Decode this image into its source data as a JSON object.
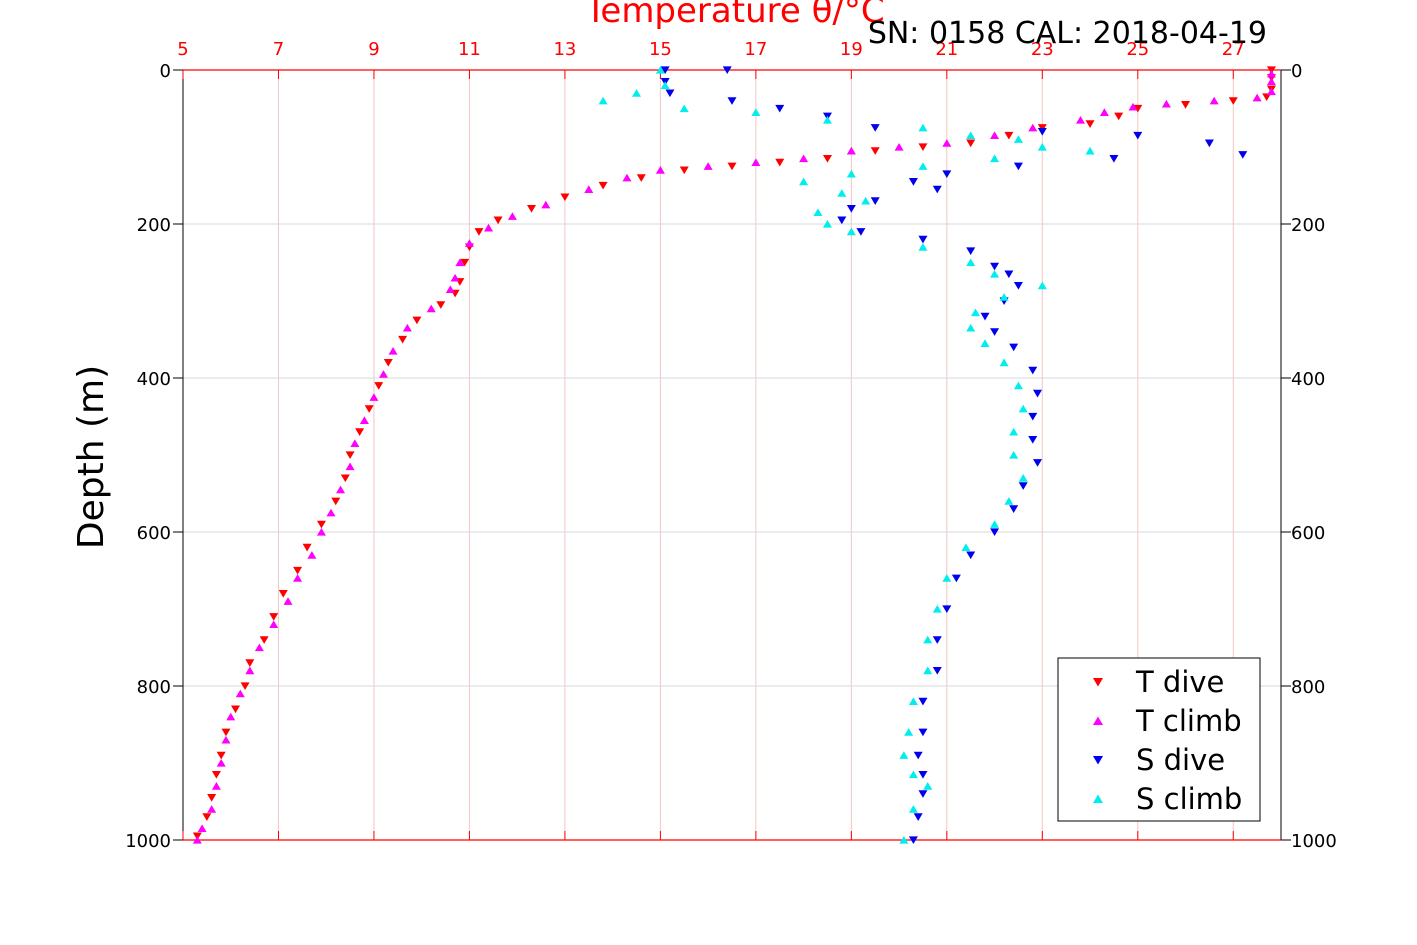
{
  "header": {
    "title_text": "Temperature θ/°C",
    "serial_text": "SN: 0158  CAL: 2018-04-19"
  },
  "chart_data": {
    "type": "scatter",
    "title": "Temperature θ/°C",
    "annotation": "SN: 0158  CAL: 2018-04-19",
    "xlabel": "Temperature θ/°C",
    "ylabel": "Depth (m)",
    "xlim": [
      5,
      28
    ],
    "ylim": [
      0,
      1000
    ],
    "y_reversed": true,
    "grid": true,
    "legend_position": "bottom-right",
    "x_ticks": [
      "5",
      "7",
      "9",
      "11",
      "13",
      "15",
      "17",
      "19",
      "21",
      "23",
      "25",
      "27"
    ],
    "y_ticks_left": [
      "0",
      "200",
      "400",
      "600",
      "800",
      "1000"
    ],
    "y_ticks_right": [
      "0",
      "200",
      "400",
      "600",
      "800",
      "1000"
    ],
    "colors": {
      "x_axis": "#ff0000",
      "t_dive": "#ff0000",
      "t_climb": "#ff00ff",
      "s_dive": "#0000ee",
      "s_climb": "#00eeee",
      "grid": "#d9d9d9",
      "frame": "#000000"
    },
    "series": [
      {
        "name": "T dive",
        "marker": "triangle-down",
        "color": "#ff0000",
        "points": [
          [
            27.8,
            0
          ],
          [
            27.8,
            10
          ],
          [
            27.8,
            25
          ],
          [
            27.7,
            35
          ],
          [
            27.0,
            40
          ],
          [
            26.0,
            45
          ],
          [
            25.0,
            50
          ],
          [
            24.6,
            60
          ],
          [
            24.0,
            70
          ],
          [
            23.0,
            75
          ],
          [
            22.3,
            85
          ],
          [
            21.5,
            95
          ],
          [
            20.5,
            100
          ],
          [
            19.5,
            105
          ],
          [
            18.5,
            115
          ],
          [
            17.5,
            120
          ],
          [
            16.5,
            125
          ],
          [
            15.5,
            130
          ],
          [
            14.6,
            140
          ],
          [
            13.8,
            150
          ],
          [
            13.0,
            165
          ],
          [
            12.3,
            180
          ],
          [
            11.6,
            195
          ],
          [
            11.2,
            210
          ],
          [
            11.0,
            230
          ],
          [
            10.9,
            250
          ],
          [
            10.8,
            275
          ],
          [
            10.7,
            290
          ],
          [
            10.4,
            305
          ],
          [
            9.9,
            325
          ],
          [
            9.6,
            350
          ],
          [
            9.3,
            380
          ],
          [
            9.1,
            410
          ],
          [
            8.9,
            440
          ],
          [
            8.7,
            470
          ],
          [
            8.5,
            500
          ],
          [
            8.4,
            530
          ],
          [
            8.2,
            560
          ],
          [
            7.9,
            590
          ],
          [
            7.6,
            620
          ],
          [
            7.4,
            650
          ],
          [
            7.1,
            680
          ],
          [
            6.9,
            710
          ],
          [
            6.7,
            740
          ],
          [
            6.4,
            770
          ],
          [
            6.3,
            800
          ],
          [
            6.1,
            830
          ],
          [
            5.9,
            860
          ],
          [
            5.8,
            890
          ],
          [
            5.7,
            915
          ],
          [
            5.6,
            945
          ],
          [
            5.5,
            970
          ],
          [
            5.3,
            995
          ]
        ]
      },
      {
        "name": "T climb",
        "marker": "triangle-up",
        "color": "#ff00ff",
        "points": [
          [
            27.8,
            5
          ],
          [
            27.8,
            15
          ],
          [
            27.8,
            28
          ],
          [
            27.5,
            36
          ],
          [
            26.6,
            40
          ],
          [
            25.6,
            44
          ],
          [
            24.9,
            48
          ],
          [
            24.3,
            55
          ],
          [
            23.8,
            65
          ],
          [
            22.8,
            75
          ],
          [
            22.0,
            85
          ],
          [
            21.0,
            95
          ],
          [
            20.0,
            100
          ],
          [
            19.0,
            105
          ],
          [
            18.0,
            115
          ],
          [
            17.0,
            120
          ],
          [
            16.0,
            125
          ],
          [
            15.0,
            130
          ],
          [
            14.3,
            140
          ],
          [
            13.5,
            155
          ],
          [
            12.6,
            175
          ],
          [
            11.9,
            190
          ],
          [
            11.4,
            205
          ],
          [
            11.0,
            225
          ],
          [
            10.8,
            250
          ],
          [
            10.7,
            270
          ],
          [
            10.6,
            285
          ],
          [
            10.2,
            310
          ],
          [
            9.7,
            335
          ],
          [
            9.4,
            365
          ],
          [
            9.2,
            395
          ],
          [
            9.0,
            425
          ],
          [
            8.8,
            455
          ],
          [
            8.6,
            485
          ],
          [
            8.5,
            515
          ],
          [
            8.3,
            545
          ],
          [
            8.1,
            575
          ],
          [
            7.9,
            600
          ],
          [
            7.7,
            630
          ],
          [
            7.4,
            660
          ],
          [
            7.2,
            690
          ],
          [
            6.9,
            720
          ],
          [
            6.6,
            750
          ],
          [
            6.4,
            780
          ],
          [
            6.2,
            810
          ],
          [
            6.0,
            840
          ],
          [
            5.9,
            870
          ],
          [
            5.8,
            900
          ],
          [
            5.7,
            930
          ],
          [
            5.6,
            960
          ],
          [
            5.4,
            985
          ],
          [
            5.3,
            1000
          ]
        ]
      },
      {
        "name": "S dive",
        "marker": "triangle-down",
        "color": "#0000ee",
        "points": [
          [
            15.1,
            0
          ],
          [
            16.4,
            0
          ],
          [
            15.1,
            15
          ],
          [
            15.2,
            30
          ],
          [
            16.5,
            40
          ],
          [
            17.5,
            50
          ],
          [
            18.5,
            60
          ],
          [
            19.5,
            75
          ],
          [
            23.0,
            80
          ],
          [
            25.0,
            85
          ],
          [
            26.5,
            95
          ],
          [
            27.2,
            110
          ],
          [
            24.5,
            115
          ],
          [
            22.5,
            125
          ],
          [
            21.0,
            135
          ],
          [
            20.3,
            145
          ],
          [
            20.8,
            155
          ],
          [
            19.5,
            170
          ],
          [
            19.0,
            180
          ],
          [
            18.8,
            195
          ],
          [
            19.2,
            210
          ],
          [
            20.5,
            220
          ],
          [
            21.5,
            235
          ],
          [
            22.0,
            255
          ],
          [
            22.3,
            265
          ],
          [
            22.5,
            280
          ],
          [
            22.2,
            300
          ],
          [
            21.8,
            320
          ],
          [
            22.0,
            340
          ],
          [
            22.4,
            360
          ],
          [
            22.8,
            390
          ],
          [
            22.9,
            420
          ],
          [
            22.8,
            450
          ],
          [
            22.8,
            480
          ],
          [
            22.9,
            510
          ],
          [
            22.6,
            540
          ],
          [
            22.4,
            570
          ],
          [
            22.0,
            600
          ],
          [
            21.5,
            630
          ],
          [
            21.2,
            660
          ],
          [
            21.0,
            700
          ],
          [
            20.8,
            740
          ],
          [
            20.8,
            780
          ],
          [
            20.5,
            820
          ],
          [
            20.5,
            860
          ],
          [
            20.4,
            890
          ],
          [
            20.5,
            915
          ],
          [
            20.5,
            940
          ],
          [
            20.4,
            970
          ],
          [
            20.3,
            1000
          ]
        ]
      },
      {
        "name": "S climb",
        "marker": "triangle-up",
        "color": "#00eeee",
        "points": [
          [
            15.0,
            0
          ],
          [
            15.1,
            20
          ],
          [
            14.5,
            30
          ],
          [
            13.8,
            40
          ],
          [
            15.5,
            50
          ],
          [
            17.0,
            55
          ],
          [
            18.5,
            65
          ],
          [
            20.5,
            75
          ],
          [
            21.5,
            85
          ],
          [
            22.5,
            90
          ],
          [
            23.0,
            100
          ],
          [
            24.0,
            105
          ],
          [
            22.0,
            115
          ],
          [
            20.5,
            125
          ],
          [
            19.0,
            135
          ],
          [
            18.0,
            145
          ],
          [
            18.8,
            160
          ],
          [
            19.3,
            170
          ],
          [
            18.3,
            185
          ],
          [
            18.5,
            200
          ],
          [
            19.0,
            210
          ],
          [
            20.5,
            230
          ],
          [
            21.5,
            250
          ],
          [
            22.0,
            265
          ],
          [
            23.0,
            280
          ],
          [
            22.2,
            295
          ],
          [
            21.6,
            315
          ],
          [
            21.5,
            335
          ],
          [
            21.8,
            355
          ],
          [
            22.2,
            380
          ],
          [
            22.5,
            410
          ],
          [
            22.6,
            440
          ],
          [
            22.4,
            470
          ],
          [
            22.4,
            500
          ],
          [
            22.6,
            530
          ],
          [
            22.3,
            560
          ],
          [
            22.0,
            590
          ],
          [
            21.4,
            620
          ],
          [
            21.0,
            660
          ],
          [
            20.8,
            700
          ],
          [
            20.6,
            740
          ],
          [
            20.6,
            780
          ],
          [
            20.3,
            820
          ],
          [
            20.2,
            860
          ],
          [
            20.1,
            890
          ],
          [
            20.3,
            915
          ],
          [
            20.6,
            930
          ],
          [
            20.3,
            960
          ],
          [
            20.1,
            1000
          ]
        ]
      }
    ]
  },
  "legend": {
    "items": [
      {
        "label": "T dive",
        "color": "#ff0000",
        "marker": "triangle-down"
      },
      {
        "label": "T climb",
        "color": "#ff00ff",
        "marker": "triangle-up"
      },
      {
        "label": "S dive",
        "color": "#0000ee",
        "marker": "triangle-down"
      },
      {
        "label": "S climb",
        "color": "#00eeee",
        "marker": "triangle-up"
      }
    ]
  }
}
